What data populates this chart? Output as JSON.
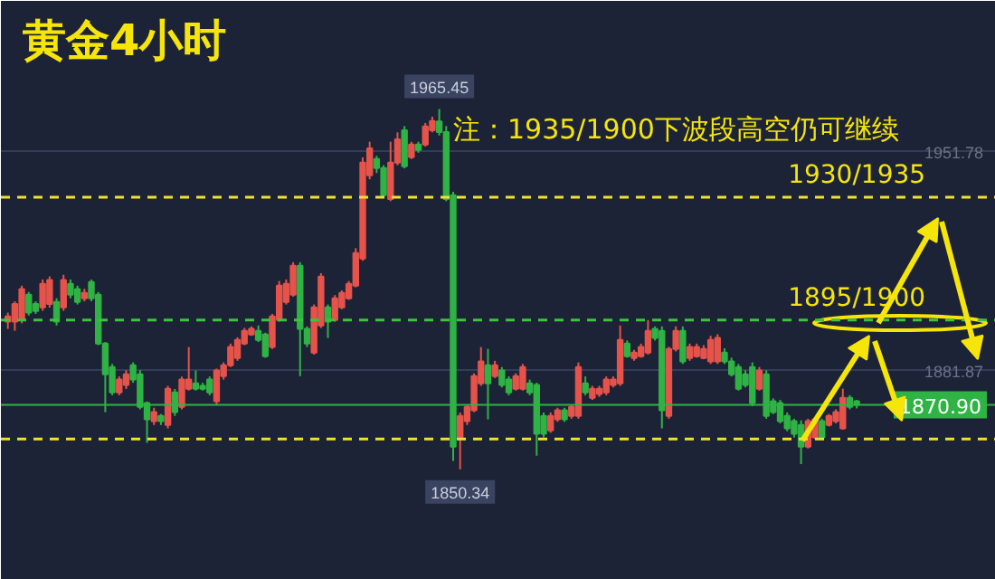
{
  "chart_data": {
    "type": "candlestick",
    "title": "黄金4小时",
    "annotations": [
      "注：1935/1900下波段高空仍可继续",
      {
        "text": "1965.45",
        "y": 1965.45
      },
      {
        "text": "1850.34",
        "y": 1850.34
      },
      {
        "text": "1930/1935",
        "y": 1937.3
      },
      {
        "text": "1895/1900",
        "y": 1898
      }
    ],
    "colors": [
      "#e5534b",
      "#e5534b",
      "#e5534b",
      "#2fb344",
      "#2fb344",
      "#e5534b",
      "#e5534b",
      "#2fb344",
      "#e5534b",
      "#2fb344",
      "#2fb344",
      "#e5534b",
      "#2fb344",
      "#2fb344",
      "#2fb344",
      "#2fb344",
      "#e5534b",
      "#e5534b",
      "#2fb344",
      "#2fb344",
      "#2fb344",
      "#e5534b",
      "#2fb344",
      "#e5534b",
      "#2fb344",
      "#e5534b",
      "#e5534b",
      "#2fb344",
      "#2fb344",
      "#2fb344",
      "#e5534b",
      "#e5534b",
      "#e5534b",
      "#e5534b",
      "#e5534b",
      "#e5534b",
      "#2fb344",
      "#2fb344",
      "#e5534b",
      "#e5534b",
      "#e5534b",
      "#e5534b",
      "#2fb344",
      "#2fb344",
      "#e5534b",
      "#e5534b",
      "#2fb344",
      "#e5534b",
      "#e5534b",
      "#e5534b",
      "#e5534b",
      "#e5534b",
      "#e5534b",
      "#2fb344",
      "#2fb344",
      "#e5534b",
      "#e5534b",
      "#2fb344",
      "#e5534b",
      "#2fb344",
      "#e5534b",
      "#e5534b",
      "#2fb344",
      "#2fb344",
      "#2fb344",
      "#e5534b",
      "#e5534b",
      "#e5534b",
      "#e5534b",
      "#2fb344",
      "#e5534b",
      "#2fb344",
      "#2fb344",
      "#e5534b",
      "#e5534b",
      "#2fb344",
      "#2fb344",
      "#2fb344",
      "#e5534b",
      "#e5534b",
      "#2fb344",
      "#e5534b",
      "#e5534b",
      "#2fb344",
      "#e5534b",
      "#e5534b",
      "#e5534b",
      "#e5534b",
      "#e5534b",
      "#2fb344",
      "#e5534b",
      "#e5534b",
      "#e5534b",
      "#2fb344",
      "#2fb344",
      "#e5534b",
      "#e5534b",
      "#2fb344",
      "#e5534b",
      "#e5534b",
      "#e5534b",
      "#e5534b",
      "#e5534b",
      "#2fb344",
      "#2fb344",
      "#2fb344",
      "#2fb344",
      "#2fb344",
      "#e5534b",
      "#2fb344",
      "#2fb344",
      "#2fb344",
      "#2fb344",
      "#2fb344",
      "#2fb344",
      "#e5534b",
      "#e5534b",
      "#2fb344",
      "#e5534b",
      "#e5534b",
      "#e5534b",
      "#2fb344",
      "#2fb344"
    ],
    "ylim": [
      1815,
      2000
    ],
    "yticks": [
      1951.78,
      1881.87
    ],
    "grid": "y",
    "ref_lines": [
      {
        "axis": "y",
        "value": 1937.3,
        "color": "#f0e130",
        "line_style": "dashed"
      },
      {
        "axis": "y",
        "value": 1898,
        "color": "#3cc43c",
        "line_style": "dashed"
      },
      {
        "axis": "y",
        "value": 1860,
        "color": "#f0e130",
        "line_style": "dashed"
      },
      {
        "axis": "y",
        "value": 1870.9,
        "label": "1870.90",
        "color": "#2fb344",
        "line_style": "solid"
      }
    ],
    "categories": [
      null,
      null,
      null,
      null,
      null,
      null,
      null,
      null,
      null,
      null,
      null,
      null,
      null,
      null,
      null,
      null,
      null,
      null,
      null,
      null,
      null,
      null,
      null,
      null,
      null,
      null,
      null,
      null,
      null,
      null,
      null,
      null,
      null,
      null,
      null,
      null,
      null,
      null,
      null,
      null,
      null,
      null,
      null,
      null,
      null,
      null,
      null,
      null,
      null,
      null,
      null,
      null,
      null,
      null,
      null,
      null,
      null,
      null,
      null,
      null,
      null,
      null,
      null,
      null,
      null,
      null,
      null,
      null,
      null,
      null,
      null,
      null,
      null,
      null,
      null,
      null,
      null,
      null,
      null,
      null,
      null,
      null,
      null,
      null,
      null,
      null,
      null,
      null,
      null,
      null,
      null,
      null,
      null,
      null,
      null,
      null,
      null,
      null,
      null,
      null,
      null,
      null,
      null,
      null,
      null,
      null,
      null,
      null,
      null,
      null,
      null,
      null,
      null,
      null,
      null,
      null,
      null,
      null,
      null,
      null,
      null,
      null,
      null
    ],
    "ohlc": [
      [
        1897.5,
        1900.4,
        1895.2,
        1899.2
      ],
      [
        1897.5,
        1904,
        1894.6,
        1903.2
      ],
      [
        1898,
        1909,
        1897,
        1907.9
      ],
      [
        1906.1,
        1907,
        1899.5,
        1900.4
      ],
      [
        1903.2,
        1904,
        1900,
        1900.9
      ],
      [
        1902.1,
        1911,
        1901,
        1909.6
      ],
      [
        1903.2,
        1912,
        1902,
        1910.8
      ],
      [
        1903.8,
        1905,
        1896.3,
        1897.5
      ],
      [
        1902.1,
        1912.5,
        1901,
        1910.8
      ],
      [
        1909.6,
        1911,
        1905,
        1906.1
      ],
      [
        1907.9,
        1909,
        1903,
        1903.8
      ],
      [
        1905,
        1908,
        1904,
        1906.7
      ],
      [
        1910.2,
        1911,
        1904,
        1905
      ],
      [
        1906.1,
        1907,
        1890,
        1890.5
      ],
      [
        1890.5,
        1891,
        1868.6,
        1880.7
      ],
      [
        1883,
        1884,
        1874,
        1874.9
      ],
      [
        1874.9,
        1880,
        1874,
        1879
      ],
      [
        1877.3,
        1882,
        1876,
        1880.7
      ],
      [
        1883.6,
        1884.5,
        1878,
        1879
      ],
      [
        1880.7,
        1882,
        1869.5,
        1870.3
      ],
      [
        1871.5,
        1872,
        1858.8,
        1866.3
      ],
      [
        1865.7,
        1870,
        1864.5,
        1868.6
      ],
      [
        1867.4,
        1868,
        1864.5,
        1865.7
      ],
      [
        1864.5,
        1877,
        1863.4,
        1876.1
      ],
      [
        1874.9,
        1876,
        1867.4,
        1868.6
      ],
      [
        1870.3,
        1880,
        1869.5,
        1879
      ],
      [
        1876.1,
        1889.4,
        1875.5,
        1879
      ],
      [
        1877.8,
        1881.9,
        1875.5,
        1876.1
      ],
      [
        1877,
        1878,
        1875.5,
        1876.1
      ],
      [
        1879,
        1880,
        1874,
        1874.9
      ],
      [
        1872.1,
        1882.5,
        1871,
        1881.9
      ],
      [
        1880.1,
        1884.5,
        1879,
        1883.6
      ],
      [
        1883.6,
        1890.5,
        1883,
        1889.4
      ],
      [
        1885.9,
        1892.5,
        1885,
        1891.7
      ],
      [
        1890.5,
        1895.5,
        1890,
        1894.6
      ],
      [
        1893.4,
        1896,
        1893,
        1895.2
      ],
      [
        1894.6,
        1896.3,
        1891,
        1891.7
      ],
      [
        1893.4,
        1894,
        1886,
        1886.5
      ],
      [
        1889.4,
        1900,
        1888.8,
        1899.2
      ],
      [
        1898,
        1910.5,
        1897.5,
        1909
      ],
      [
        1903.8,
        1911,
        1903,
        1909.6
      ],
      [
        1906.1,
        1916.5,
        1905.5,
        1915.4
      ],
      [
        1915.4,
        1916.5,
        1880.1,
        1895.2
      ],
      [
        1895.2,
        1896,
        1889.4,
        1890.5
      ],
      [
        1887.6,
        1903,
        1887,
        1902.1
      ],
      [
        1896.3,
        1913,
        1895.5,
        1911.9
      ],
      [
        1902.1,
        1903,
        1892.3,
        1897.5
      ],
      [
        1898,
        1906,
        1897.5,
        1905
      ],
      [
        1902.1,
        1907.5,
        1901.5,
        1906.7
      ],
      [
        1905,
        1910.5,
        1904.5,
        1909.6
      ],
      [
        1909,
        1921,
        1908.5,
        1919.4
      ],
      [
        1917.7,
        1950,
        1917,
        1948.3
      ],
      [
        1944.3,
        1955,
        1943,
        1952.9
      ],
      [
        1949.5,
        1950.5,
        1945,
        1946.6
      ],
      [
        1946.6,
        1947.5,
        1937,
        1937.9
      ],
      [
        1936.7,
        1955,
        1936,
        1948.3
      ],
      [
        1948.3,
        1958,
        1947.5,
        1955.8
      ],
      [
        1958.7,
        1960,
        1946.5,
        1947.2
      ],
      [
        1950.1,
        1955,
        1949.5,
        1954.1
      ],
      [
        1954.1,
        1955,
        1951.5,
        1952.4
      ],
      [
        1954.1,
        1961,
        1953.5,
        1959.9
      ],
      [
        1958.7,
        1963,
        1958,
        1961.6
      ],
      [
        1961.5,
        1965.45,
        1957,
        1958.1
      ],
      [
        1958.1,
        1960,
        1936,
        1936.7
      ],
      [
        1937.9,
        1939,
        1853,
        1857.6
      ],
      [
        1860.2,
        1868.5,
        1850.34,
        1867.4
      ],
      [
        1865.7,
        1871,
        1864.5,
        1870.3
      ],
      [
        1869.2,
        1881,
        1868.6,
        1880.1
      ],
      [
        1877.8,
        1889.4,
        1877,
        1884.8
      ],
      [
        1883.6,
        1888.8,
        1866.3,
        1877.8
      ],
      [
        1880.1,
        1885,
        1879.5,
        1883.6
      ],
      [
        1881.9,
        1883,
        1876.5,
        1877.3
      ],
      [
        1879,
        1880,
        1874,
        1874.9
      ],
      [
        1876.1,
        1881,
        1875.5,
        1880.1
      ],
      [
        1876.1,
        1884,
        1875.5,
        1883
      ],
      [
        1877.8,
        1879,
        1874,
        1874.9
      ],
      [
        1877.3,
        1878,
        1854.7,
        1861.7
      ],
      [
        1867.4,
        1868.5,
        1860.5,
        1861.7
      ],
      [
        1862.8,
        1868.5,
        1862,
        1867.4
      ],
      [
        1866.3,
        1870,
        1865.5,
        1869.2
      ],
      [
        1869.2,
        1870,
        1865.5,
        1866.3
      ],
      [
        1867.4,
        1871,
        1866.5,
        1870.3
      ],
      [
        1867.4,
        1884.5,
        1866.5,
        1883
      ],
      [
        1877.8,
        1880,
        1874,
        1874.9
      ],
      [
        1873.2,
        1877,
        1872.5,
        1876.1
      ],
      [
        1874.4,
        1877,
        1873.5,
        1876.1
      ],
      [
        1874.9,
        1880,
        1874,
        1879
      ],
      [
        1877.3,
        1880,
        1876.5,
        1879
      ],
      [
        1877.8,
        1896.3,
        1877,
        1891.7
      ],
      [
        1890.5,
        1891.5,
        1886,
        1886.5
      ],
      [
        1885.9,
        1888.5,
        1885,
        1887.6
      ],
      [
        1886.5,
        1890.5,
        1886,
        1889.4
      ],
      [
        1887.6,
        1898,
        1887,
        1894.6
      ],
      [
        1895.2,
        1896,
        1891.5,
        1892.3
      ],
      [
        1894.6,
        1896,
        1863.4,
        1869.2
      ],
      [
        1867.4,
        1889.5,
        1866.5,
        1888.8
      ],
      [
        1888.8,
        1896,
        1888,
        1894.6
      ],
      [
        1894.6,
        1896,
        1884,
        1884.8
      ],
      [
        1885.9,
        1890.5,
        1885,
        1889.4
      ],
      [
        1886.5,
        1890.5,
        1886,
        1889.4
      ],
      [
        1885.9,
        1890,
        1885.5,
        1888.8
      ],
      [
        1884.8,
        1893,
        1884,
        1891.7
      ],
      [
        1884.8,
        1893.5,
        1884,
        1892.3
      ],
      [
        1887.6,
        1889,
        1884,
        1884.8
      ],
      [
        1884.8,
        1886,
        1880,
        1880.7
      ],
      [
        1883,
        1884,
        1875.5,
        1876.1
      ],
      [
        1880.7,
        1882,
        1876.5,
        1877.3
      ],
      [
        1883,
        1884.5,
        1870.5,
        1871.5
      ],
      [
        1876.1,
        1883,
        1875.5,
        1881.9
      ],
      [
        1880.7,
        1882,
        1866.5,
        1867.4
      ],
      [
        1872.1,
        1873,
        1868,
        1868.6
      ],
      [
        1871.5,
        1872.5,
        1865,
        1865.7
      ],
      [
        1867.4,
        1868.5,
        1862.5,
        1863.4
      ],
      [
        1865.7,
        1866.5,
        1860.5,
        1861.7
      ],
      [
        1864.5,
        1866,
        1852,
        1857.6
      ],
      [
        1857.6,
        1866.5,
        1857,
        1865.7
      ],
      [
        1860.5,
        1867,
        1860,
        1866.3
      ],
      [
        1865.7,
        1866.5,
        1860,
        1860.5
      ],
      [
        1864.5,
        1868,
        1864,
        1867.4
      ],
      [
        1865.7,
        1869.5,
        1865,
        1868.6
      ],
      [
        1863.4,
        1876.1,
        1863,
        1873.2
      ],
      [
        1873.2,
        1874,
        1869.5,
        1870.3
      ],
      [
        1872.1,
        1872.5,
        1869.8,
        1870.9
      ]
    ]
  }
}
